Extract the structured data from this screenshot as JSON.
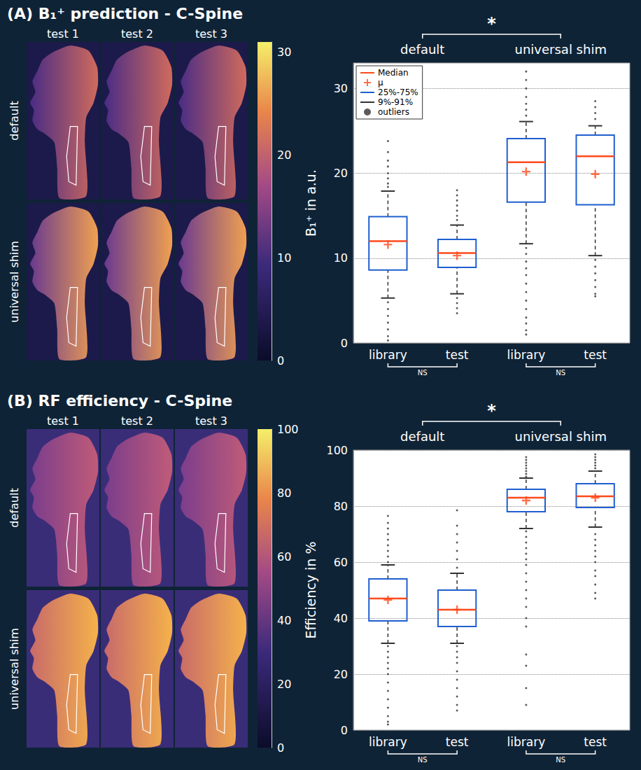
{
  "chart_data": [
    {
      "type": "boxplot",
      "title": "(A) B₁⁺ prediction - C-Spine",
      "ylabel": "B₁⁺ in a.u.",
      "categories": [
        "library",
        "test",
        "library",
        "test"
      ],
      "groups": [
        "default",
        "universal shim"
      ],
      "significance": {
        "groups": "*",
        "pairs": "NS"
      },
      "ylim": [
        0,
        33
      ],
      "yticks": [
        0,
        10,
        20,
        30
      ],
      "grid": true,
      "legend": "top-left",
      "image_panel": {
        "columns": [
          "test 1",
          "test 2",
          "test 3"
        ],
        "rows": [
          "default",
          "universal shim"
        ],
        "colorbar": {
          "range": [
            0,
            31
          ],
          "ticks": [
            0,
            10,
            20,
            30
          ]
        }
      },
      "series": [
        {
          "name": "Median",
          "type": "median",
          "color": "#ff4a1c",
          "values": [
            12.0,
            10.6,
            21.3,
            22.0
          ]
        },
        {
          "name": "μ",
          "type": "mean",
          "marker": "plus",
          "color": "#ff4a1c",
          "values": [
            11.6,
            10.3,
            20.2,
            19.9
          ]
        },
        {
          "name": "25%-75%",
          "type": "box",
          "color": "#1f5fd0",
          "values": [
            [
              8.6,
              14.9
            ],
            [
              8.9,
              12.2
            ],
            [
              16.6,
              24.1
            ],
            [
              16.3,
              24.5
            ]
          ]
        },
        {
          "name": "9%-91%",
          "type": "whisker",
          "line_style": "dashed",
          "color": "#333333",
          "values": [
            [
              5.3,
              17.9
            ],
            [
              5.8,
              13.9
            ],
            [
              11.7,
              26.1
            ],
            [
              10.3,
              25.6
            ]
          ]
        },
        {
          "name": "outliers",
          "type": "outlier",
          "marker": "dot",
          "color": "#333333",
          "values": [
            [
              23.8,
              22.5,
              21.5,
              20.8,
              20,
              19.4,
              18.8,
              18.4,
              4.8,
              4,
              3.2,
              2.4,
              1.6,
              0.8,
              0.3
            ],
            [
              18,
              17.4,
              16.8,
              16.2,
              15.6,
              15,
              14.5,
              5.3,
              4.7,
              4.1,
              3.5
            ],
            [
              32,
              31,
              30,
              29,
              28.2,
              27.5,
              26.8,
              11.2,
              10.5,
              9.6,
              8.8,
              8,
              7,
              6,
              5,
              4,
              3,
              2.3,
              1.5,
              1
            ],
            [
              28.5,
              27.8,
              27.1,
              26.4,
              9.8,
              9,
              8.2,
              7.4,
              6.6,
              5.8,
              5.5
            ]
          ]
        }
      ]
    },
    {
      "type": "boxplot",
      "title": "(B) RF efficiency - C-Spine",
      "ylabel": "Efficiency in %",
      "categories": [
        "library",
        "test",
        "library",
        "test"
      ],
      "groups": [
        "default",
        "universal shim"
      ],
      "significance": {
        "groups": "*",
        "pairs": "NS"
      },
      "ylim": [
        0,
        100
      ],
      "yticks": [
        0,
        20,
        40,
        60,
        80,
        100
      ],
      "grid": true,
      "image_panel": {
        "columns": [
          "test 1",
          "test 2",
          "test 3"
        ],
        "rows": [
          "default",
          "universal shim"
        ],
        "colorbar": {
          "range": [
            0,
            100
          ],
          "ticks": [
            0,
            20,
            40,
            60,
            80,
            100
          ]
        }
      },
      "series": [
        {
          "name": "Median",
          "type": "median",
          "color": "#ff4a1c",
          "values": [
            47,
            43,
            83,
            83.5
          ]
        },
        {
          "name": "μ",
          "type": "mean",
          "marker": "plus",
          "color": "#ff4a1c",
          "values": [
            46.5,
            43,
            82,
            83
          ]
        },
        {
          "name": "25%-75%",
          "type": "box",
          "color": "#1f5fd0",
          "values": [
            [
              39,
              54
            ],
            [
              37,
              50
            ],
            [
              78,
              86
            ],
            [
              79.5,
              88
            ]
          ]
        },
        {
          "name": "9%-91%",
          "type": "whisker",
          "line_style": "dashed",
          "color": "#333333",
          "values": [
            [
              31,
              59
            ],
            [
              31,
              56
            ],
            [
              72,
              90
            ],
            [
              72.5,
              92.5
            ]
          ]
        },
        {
          "name": "outliers",
          "type": "outlier",
          "marker": "dot",
          "color": "#333333",
          "values": [
            [
              76.5,
              74,
              72,
              70,
              68,
              66,
              64,
              62,
              60,
              30,
              28,
              26,
              24,
              22,
              20,
              17,
              14,
              11,
              8,
              5,
              3,
              2
            ],
            [
              78.5,
              73,
              70,
              67,
              64,
              61,
              58,
              30,
              28,
              26,
              24,
              21,
              18,
              15,
              12,
              9,
              7
            ],
            [
              97.5,
              96.5,
              95.5,
              94.5,
              93.5,
              92.5,
              91.5,
              90.5,
              71,
              69,
              67,
              65,
              63,
              61,
              59,
              56,
              53,
              50,
              47,
              44,
              40,
              37,
              27,
              23,
              15,
              9
            ],
            [
              98.5,
              97.5,
              96.5,
              95.5,
              94.5,
              93.5,
              70,
              68,
              66,
              64,
              62,
              60,
              57,
              55,
              52,
              49,
              47
            ]
          ]
        }
      ]
    }
  ]
}
